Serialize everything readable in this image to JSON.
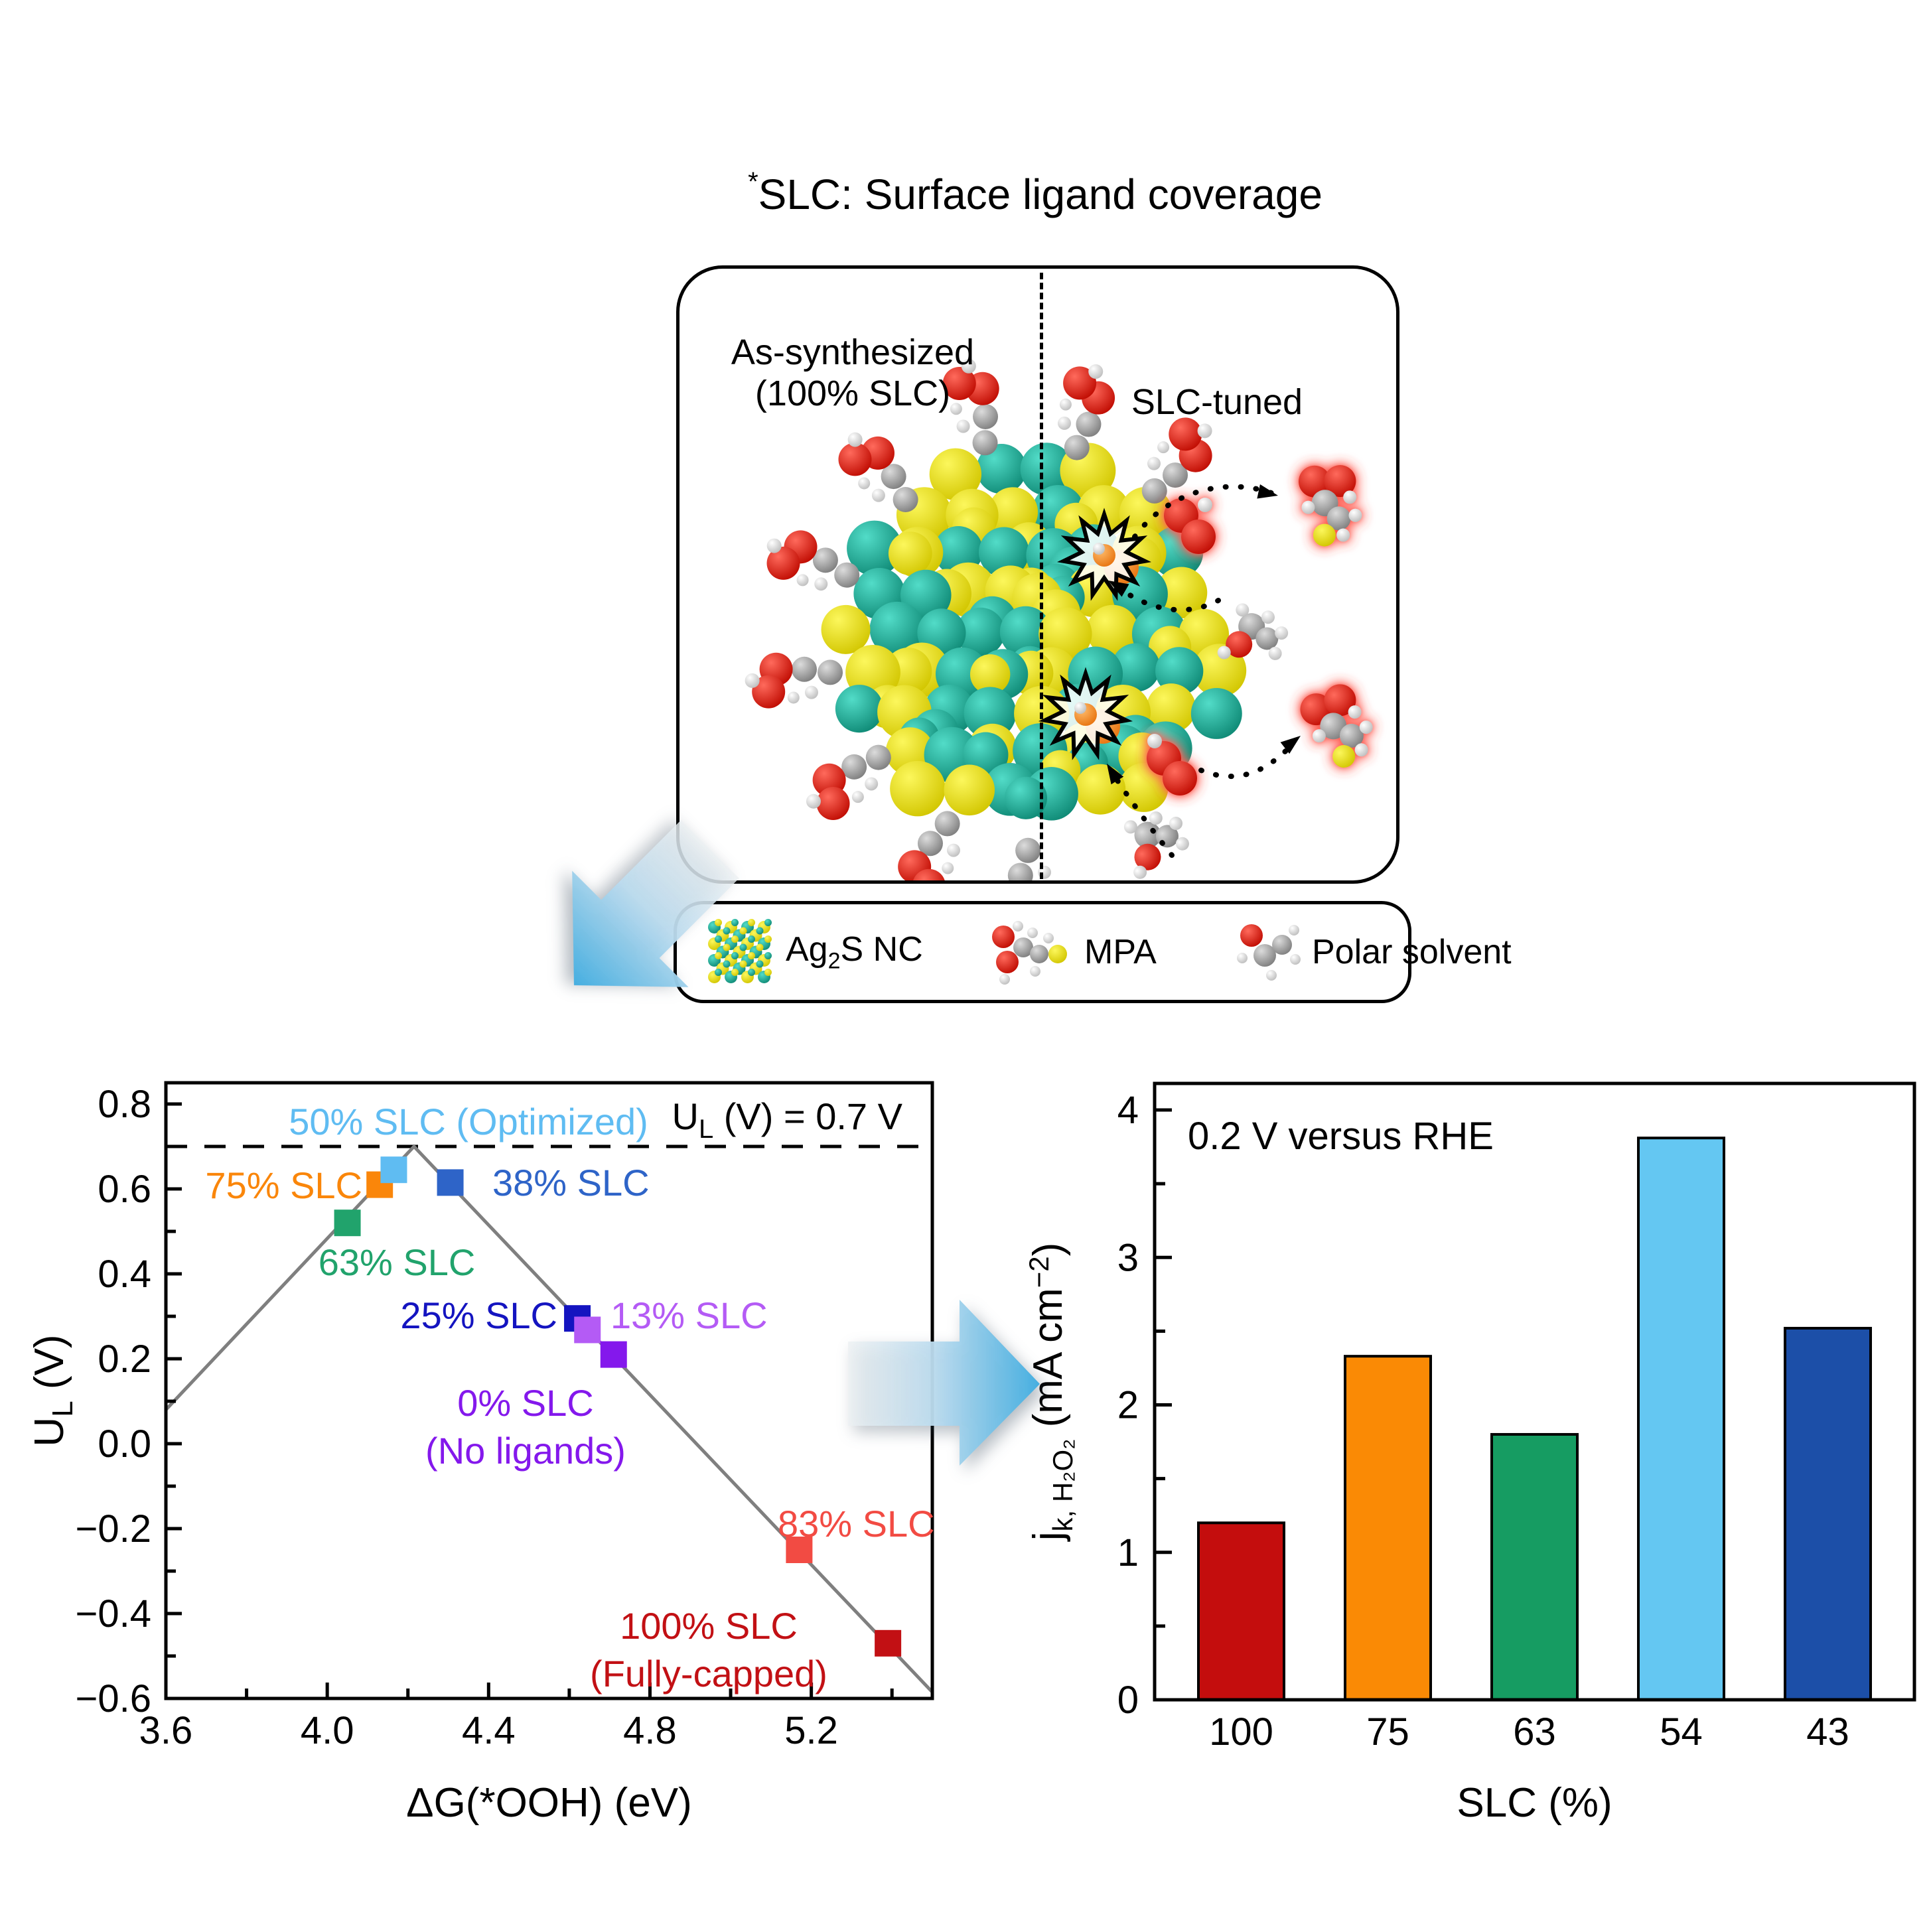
{
  "title": {
    "sup": "*",
    "text": "SLC: Surface ligand coverage"
  },
  "panel": {
    "left_label_line1": "As-synthesized",
    "left_label_line2": "(100% SLC)",
    "right_label": "SLC-tuned"
  },
  "legend": {
    "items": [
      {
        "icon": "ag2s-nanocrystal-icon",
        "pre": "Ag",
        "sub": "2",
        "post": "S NC"
      },
      {
        "icon": "mpa-molecule-icon",
        "label": "MPA"
      },
      {
        "icon": "polar-solvent-molecule-icon",
        "label": "Polar solvent"
      }
    ]
  },
  "chart_data": [
    {
      "id": "volcano",
      "type": "scatter",
      "xlabel": "ΔG(*OOH) (eV)",
      "ylabel_parts": {
        "main": "U",
        "sub": "L",
        "rest": " (V)"
      },
      "xlim": [
        3.6,
        5.5
      ],
      "ylim": [
        -0.6,
        0.85
      ],
      "xticks": [
        3.6,
        4.0,
        4.4,
        4.8,
        5.2
      ],
      "yticks": [
        0.8,
        0.6,
        0.4,
        0.2,
        0.0,
        -0.2,
        -0.4,
        -0.6
      ],
      "grid": false,
      "ref_line": {
        "y": 0.7,
        "style": "dashed",
        "label_parts": {
          "pre": "U",
          "sub": "L",
          "rest": " (V) = 0.7 V"
        },
        "color": "#000000"
      },
      "line": {
        "color": "#7F7F7F",
        "vertices": [
          [
            3.6,
            0.08
          ],
          [
            4.215,
            0.7
          ],
          [
            5.5,
            -0.585
          ]
        ]
      },
      "points": [
        {
          "label": "63% SLC",
          "x": 4.05,
          "y": 0.52,
          "color": "#21A36C"
        },
        {
          "label": "75% SLC",
          "x": 4.13,
          "y": 0.61,
          "color": "#FA860A"
        },
        {
          "label": "50% SLC (Optimized)",
          "x": 4.165,
          "y": 0.645,
          "color": "#5FBCF2"
        },
        {
          "label": "38% SLC",
          "x": 4.305,
          "y": 0.615,
          "color": "#2E64C8"
        },
        {
          "label": "25% SLC",
          "x": 4.62,
          "y": 0.295,
          "color": "#1414C0"
        },
        {
          "label": "13% SLC",
          "x": 4.645,
          "y": 0.268,
          "color": "#B45BF5"
        },
        {
          "label": "0% SLC",
          "label2": "(No ligands)",
          "x": 4.71,
          "y": 0.21,
          "color": "#8418EC"
        },
        {
          "label": "83% SLC",
          "x": 5.17,
          "y": -0.25,
          "color": "#F24B43"
        },
        {
          "label": "100% SLC",
          "label2": "(Fully-capped)",
          "x": 5.39,
          "y": -0.47,
          "color": "#C21014"
        }
      ]
    },
    {
      "id": "kinetic-current",
      "type": "bar",
      "annotation": "0.2 V versus RHE",
      "xlabel": "SLC (%)",
      "ylabel_parts": {
        "main": "j",
        "sub": "k,  H₂O₂",
        "unit_pre": " (mA cm",
        "sup": "-2",
        "unit_post": ")"
      },
      "categories": [
        "100",
        "75",
        "63",
        "54",
        "43"
      ],
      "values": [
        1.2,
        2.33,
        1.8,
        3.81,
        2.52
      ],
      "colors": [
        "#C40D0D",
        "#FA8A05",
        "#169C62",
        "#64C7F2",
        "#1C4FA8"
      ],
      "ylim": [
        0,
        4.18
      ],
      "yticks": [
        0,
        1,
        2,
        3,
        4
      ],
      "grid": false,
      "legend_position": "none"
    }
  ],
  "scene": {
    "nanocrystal_core_colors": {
      "teal": "#1FB5A0",
      "yellow": "#F0E80C"
    },
    "molecule_colors": {
      "oxygen": "#E8251A",
      "carbon": "#9A9A9A",
      "hydrogen": "#FFFFFF",
      "sulfur": "#F0F000",
      "exposed_site": "#F08A28"
    },
    "accent_arrow_color": "#45AEE0"
  }
}
